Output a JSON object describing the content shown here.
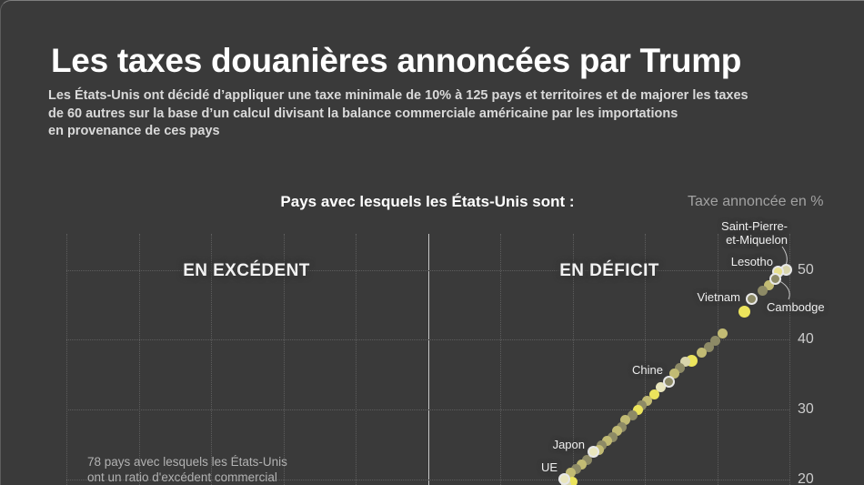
{
  "poster": {
    "title": "Les taxes douanières annoncées par Trump",
    "subtitle": "Les États-Unis ont décidé d’appliquer une taxe minimale de 10% à 125 pays et territoires et de majorer les taxes\nde 60 autres sur la base d’un calcul divisant la balance commerciale américaine par les importations\nen provenance de ces pays",
    "background": "#3a3a3a"
  },
  "chart": {
    "header": "Pays avec lesquels les États-Unis sont :",
    "axis_title": "Taxe annoncée en %",
    "section_left": "EN EXCÉDENT",
    "section_right": "EN DÉFICIT",
    "note": "78 pays avec lesquels les États-Unis\nont un ratio d'excédent commercial",
    "yticks": [
      50,
      40,
      30,
      20
    ]
  },
  "chart_data": {
    "type": "scatter",
    "title": "Les taxes douanières annoncées par Trump",
    "ylabel": "Taxe annoncée en %",
    "ylim_visible": [
      19,
      52
    ],
    "grid": "dotted",
    "legend_position": "none",
    "labeled_values": {
      "Saint-Pierre-et-Miquelon": 50,
      "Lesotho": 50,
      "Cambodge": 49,
      "Vietnam": 46,
      "Chine": 34,
      "Japon": 24,
      "UE": 20
    },
    "palette": {
      "olive": "#8d8a66",
      "khaki": "#c2bb74",
      "yellow": "#ece45c",
      "pale": "#d9d5ac",
      "paleyellow": "#e7df8e",
      "cream": "#e9e6bd",
      "ring": "#e8e8e8"
    },
    "points": [
      {
        "x": 864.5,
        "value": 50,
        "color": "pale",
        "ring": true,
        "id": "spm",
        "label": "Saint-Pierre-\net-Miquelon"
      },
      {
        "x": 855,
        "value": 49.8,
        "color": "paleyellow",
        "ring": true,
        "id": "lesotho",
        "label": "Lesotho"
      },
      {
        "x": 852,
        "value": 48.7,
        "color": "olive",
        "ring": true,
        "id": "cambodge",
        "label": "Cambodge"
      },
      {
        "x": 845,
        "value": 47.8,
        "color": "khaki"
      },
      {
        "x": 838,
        "value": 47.0,
        "color": "olive"
      },
      {
        "x": 826,
        "value": 45.9,
        "color": "olive",
        "ring": true,
        "id": "vietnam",
        "label": "Vietnam"
      },
      {
        "x": 818.5,
        "value": 44.0,
        "color": "yellow",
        "big": true
      },
      {
        "x": 794,
        "value": 40.9,
        "color": "khaki"
      },
      {
        "x": 786.5,
        "value": 39.9,
        "color": "olive"
      },
      {
        "x": 779,
        "value": 38.9,
        "color": "olive"
      },
      {
        "x": 771.5,
        "value": 38.1,
        "color": "khaki"
      },
      {
        "x": 760.5,
        "value": 37.0,
        "color": "yellow",
        "big": true
      },
      {
        "x": 753.5,
        "value": 36.8,
        "color": "pale"
      },
      {
        "x": 747,
        "value": 35.9,
        "color": "olive"
      },
      {
        "x": 741.5,
        "value": 35.1,
        "color": "khaki"
      },
      {
        "x": 735,
        "value": 34.0,
        "color": "olive",
        "ring": true,
        "id": "chine",
        "label": "Chine"
      },
      {
        "x": 726,
        "value": 33.2,
        "color": "cream"
      },
      {
        "x": 719.5,
        "value": 32.2,
        "color": "yellow"
      },
      {
        "x": 711.5,
        "value": 31.3,
        "color": "khaki"
      },
      {
        "x": 705.5,
        "value": 30.6,
        "color": "olive"
      },
      {
        "x": 701.5,
        "value": 30.0,
        "color": "yellow"
      },
      {
        "x": 695.5,
        "value": 29.2,
        "color": "olive"
      },
      {
        "x": 687.5,
        "value": 28.5,
        "color": "khaki"
      },
      {
        "x": 683.5,
        "value": 27.5,
        "color": "olive"
      },
      {
        "x": 678.5,
        "value": 26.9,
        "color": "khaki"
      },
      {
        "x": 673.5,
        "value": 26.1,
        "color": "olive"
      },
      {
        "x": 667.5,
        "value": 25.5,
        "color": "khaki"
      },
      {
        "x": 661,
        "value": 24.8,
        "color": "olive"
      },
      {
        "x": 658,
        "value": 24.2,
        "color": "khaki"
      },
      {
        "x": 652.5,
        "value": 24.0,
        "color": "cream",
        "ring": true,
        "id": "japon",
        "label": "Japon"
      },
      {
        "x": 645.5,
        "value": 22.8,
        "color": "olive"
      },
      {
        "x": 639.5,
        "value": 22.1,
        "color": "khaki"
      },
      {
        "x": 633.5,
        "value": 21.5,
        "color": "olive"
      },
      {
        "x": 627.5,
        "value": 20.9,
        "color": "khaki"
      },
      {
        "x": 620,
        "value": 20.0,
        "color": "cream",
        "ring": true,
        "id": "ue",
        "label": "UE"
      },
      {
        "x": 629,
        "value": 19.6,
        "color": "yellow"
      },
      {
        "x": 622,
        "value": 19.2,
        "color": "pale"
      }
    ]
  }
}
